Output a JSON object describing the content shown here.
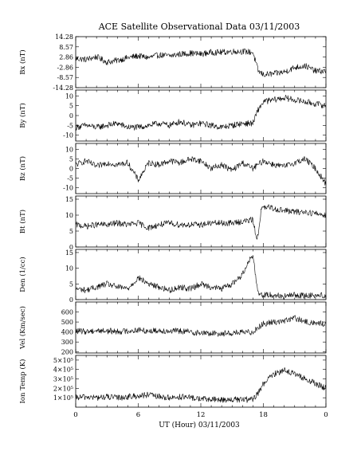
{
  "figure": {
    "title": "ACE Satellite Observational Data   03/11/2003",
    "xlabel": "UT (Hour)   03/11/2003"
  },
  "chart_data": [
    {
      "type": "line",
      "ylabel": "Bx (nT)",
      "ylim": [
        -14.28,
        14.28
      ],
      "yticks": [
        "14.28",
        "8.57",
        "2.86",
        "-2.86",
        "-8.57",
        "-14.28"
      ],
      "ytick_values": [
        14.28,
        8.57,
        2.86,
        -2.86,
        -8.57,
        -14.28
      ],
      "xlim": [
        0,
        24
      ],
      "series": [
        {
          "x": [
            0,
            1,
            2,
            3,
            4,
            5,
            6,
            7,
            8,
            9,
            10,
            11,
            12,
            13,
            14,
            15,
            16,
            17,
            17.5,
            18,
            19,
            20,
            21,
            22,
            23,
            24
          ],
          "values": [
            2,
            1.5,
            3,
            0,
            1,
            2.5,
            3.5,
            2.5,
            4,
            3.5,
            4.5,
            5,
            4.5,
            5.5,
            5.5,
            6,
            6,
            5.5,
            -5,
            -7,
            -6.5,
            -5.5,
            -3,
            -2,
            -5,
            -5
          ]
        }
      ]
    },
    {
      "type": "line",
      "ylabel": "By (nT)",
      "ylim": [
        -13,
        13
      ],
      "yticks": [
        "10",
        "5",
        "0",
        "-5",
        "-10"
      ],
      "ytick_values": [
        10,
        5,
        0,
        -5,
        -10
      ],
      "xlim": [
        0,
        24
      ],
      "series": [
        {
          "x": [
            0,
            1,
            2,
            3,
            4,
            5,
            6,
            7,
            8,
            9,
            10,
            11,
            12,
            13,
            14,
            15,
            16,
            17,
            17.5,
            18,
            19,
            20,
            21,
            22,
            23,
            24
          ],
          "values": [
            -6,
            -5,
            -6,
            -5,
            -4,
            -6,
            -6,
            -5,
            -4,
            -5,
            -3,
            -5,
            -4,
            -5,
            -6,
            -5,
            -4,
            -4,
            3,
            7,
            8,
            9,
            8,
            7,
            6,
            5
          ]
        }
      ]
    },
    {
      "type": "line",
      "ylabel": "Bz (nT)",
      "ylim": [
        -13,
        13
      ],
      "yticks": [
        "10",
        "5",
        "0",
        "-5",
        "-10"
      ],
      "ytick_values": [
        10,
        5,
        0,
        -5,
        -10
      ],
      "xlim": [
        0,
        24
      ],
      "series": [
        {
          "x": [
            0,
            1,
            2,
            3,
            4,
            5,
            6,
            7,
            8,
            9,
            10,
            11,
            12,
            13,
            14,
            15,
            16,
            17,
            18,
            19,
            20,
            21,
            22,
            23,
            24
          ],
          "values": [
            2,
            4,
            1,
            3,
            2,
            3,
            -6,
            3,
            2,
            4,
            3,
            5,
            4,
            0,
            2,
            -1,
            3,
            0,
            4,
            2,
            1,
            3,
            5,
            0,
            -8
          ]
        }
      ]
    },
    {
      "type": "line",
      "ylabel": "Bt (nT)",
      "ylim": [
        0,
        16
      ],
      "yticks": [
        "15",
        "10",
        "5",
        "0"
      ],
      "ytick_values": [
        15,
        10,
        5,
        0
      ],
      "xlim": [
        0,
        24
      ],
      "series": [
        {
          "x": [
            0,
            1,
            2,
            3,
            4,
            5,
            6,
            7,
            8,
            9,
            10,
            11,
            12,
            13,
            14,
            15,
            16,
            17,
            17.4,
            17.8,
            18.5,
            19,
            20,
            21,
            22,
            23,
            24
          ],
          "values": [
            7,
            6.5,
            7,
            7,
            7.5,
            7,
            7.5,
            6,
            7,
            7.5,
            7,
            7,
            7,
            7.5,
            7.5,
            7.5,
            8,
            8.5,
            2,
            12,
            12.5,
            12,
            11.5,
            11,
            11,
            10.5,
            10
          ]
        }
      ]
    },
    {
      "type": "line",
      "ylabel": "Den (1/cc)",
      "ylim": [
        0,
        16
      ],
      "yticks": [
        "15",
        "10",
        "5",
        "0"
      ],
      "ytick_values": [
        15,
        10,
        5,
        0
      ],
      "xlim": [
        0,
        24
      ],
      "series": [
        {
          "x": [
            0,
            1,
            2,
            3,
            4,
            5,
            6,
            7,
            8,
            9,
            10,
            11,
            12,
            13,
            14,
            15,
            16,
            16.5,
            17,
            17.5,
            18,
            19,
            20,
            21,
            22,
            23,
            24
          ],
          "values": [
            3.5,
            3,
            4,
            5,
            4,
            3.5,
            7,
            5,
            4,
            3,
            4,
            3.5,
            5,
            4,
            3.5,
            5,
            8,
            12,
            14,
            2,
            1.5,
            1.5,
            1,
            1.5,
            1.2,
            1.5,
            1.2
          ]
        }
      ]
    },
    {
      "type": "line",
      "ylabel": "Vel (Km/sec)",
      "ylim": [
        190,
        700
      ],
      "yticks": [
        "600",
        "500",
        "400",
        "300",
        "200"
      ],
      "ytick_values": [
        600,
        500,
        400,
        300,
        200
      ],
      "xlim": [
        0,
        24
      ],
      "series": [
        {
          "x": [
            0,
            1,
            2,
            3,
            4,
            5,
            6,
            7,
            8,
            9,
            10,
            11,
            12,
            13,
            14,
            15,
            16,
            17,
            17.5,
            18,
            19,
            20,
            21,
            22,
            23,
            24
          ],
          "values": [
            410,
            405,
            415,
            410,
            405,
            410,
            420,
            410,
            415,
            410,
            410,
            400,
            390,
            385,
            385,
            390,
            395,
            400,
            450,
            480,
            500,
            510,
            540,
            500,
            490,
            480
          ]
        }
      ]
    },
    {
      "type": "line",
      "ylabel": "Ion Temp (K)",
      "ylim": [
        0,
        550000
      ],
      "yticks": [
        "5×10⁵",
        "4×10⁵",
        "3×10⁵",
        "2×10⁵",
        "1×10⁵"
      ],
      "ytick_values": [
        500000,
        400000,
        300000,
        200000,
        100000
      ],
      "xlim": [
        0,
        24
      ],
      "series": [
        {
          "x": [
            0,
            1,
            2,
            3,
            4,
            5,
            6,
            7,
            8,
            9,
            10,
            11,
            12,
            13,
            14,
            15,
            16,
            17,
            17.5,
            18,
            19,
            20,
            21,
            22,
            23,
            24
          ],
          "values": [
            100000,
            110000,
            100000,
            110000,
            100000,
            110000,
            120000,
            130000,
            110000,
            100000,
            110000,
            100000,
            90000,
            80000,
            80000,
            80000,
            80000,
            80000,
            150000,
            250000,
            350000,
            400000,
            350000,
            300000,
            250000,
            200000
          ]
        }
      ]
    }
  ],
  "xaxis": {
    "xlim": [
      0,
      24
    ],
    "ticks": [
      "0",
      "6",
      "12",
      "18",
      "0"
    ],
    "tick_values": [
      0,
      6,
      12,
      18,
      24
    ]
  }
}
